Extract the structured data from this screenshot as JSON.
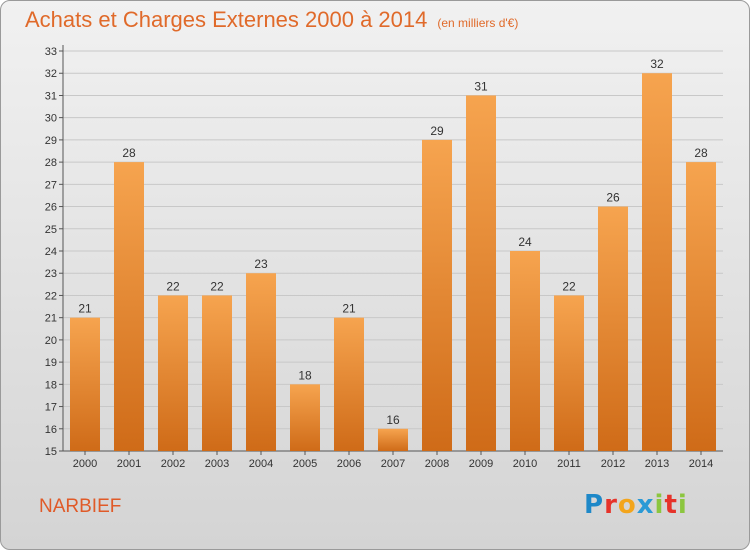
{
  "title": "Achats et Charges Externes 2000 à 2014",
  "subtitle": "(en milliers d'€)",
  "commune": "NARBIEF",
  "logo": {
    "text": "Proxiti",
    "letters": [
      {
        "ch": "P",
        "color": "#1e88c8"
      },
      {
        "ch": "r",
        "color": "#e6332a"
      },
      {
        "ch": "o",
        "color": "#f3a51c"
      },
      {
        "ch": "x",
        "color": "#2a9ad6"
      },
      {
        "ch": "i",
        "color": "#8cc63f"
      },
      {
        "ch": "t",
        "color": "#e6332a"
      },
      {
        "ch": "i",
        "color": "#8cc63f"
      }
    ]
  },
  "colors": {
    "bar_top": "#f6a44f",
    "bar_bottom": "#cf6b18",
    "title": "#e06a2a",
    "grid": "#c8c8c8"
  },
  "chart_data": {
    "type": "bar",
    "title": "Achats et Charges Externes 2000 à 2014",
    "subtitle": "(en milliers d'€)",
    "xlabel": "",
    "ylabel": "",
    "categories": [
      "2000",
      "2001",
      "2002",
      "2003",
      "2004",
      "2005",
      "2006",
      "2007",
      "2008",
      "2009",
      "2010",
      "2011",
      "2012",
      "2013",
      "2014"
    ],
    "values": [
      21,
      28,
      22,
      22,
      23,
      18,
      21,
      16,
      29,
      31,
      24,
      22,
      26,
      32,
      28
    ],
    "ylim": [
      15,
      33
    ],
    "yticks": [
      15,
      16,
      17,
      18,
      19,
      20,
      21,
      22,
      23,
      24,
      25,
      26,
      27,
      28,
      29,
      30,
      31,
      32,
      33
    ],
    "grid": true,
    "legend": "none"
  }
}
